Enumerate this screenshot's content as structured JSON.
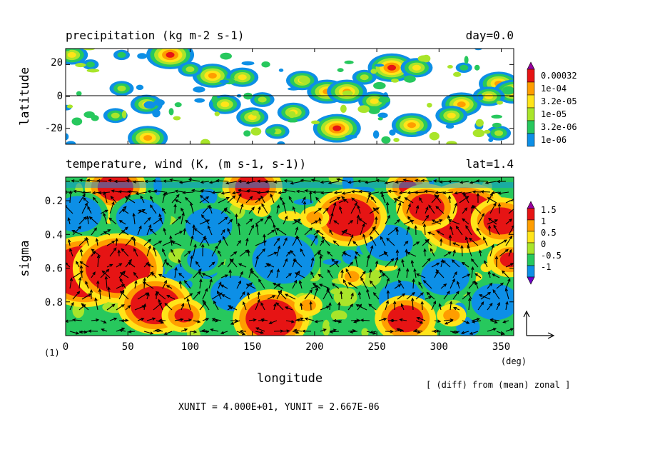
{
  "chart_data": [
    {
      "type": "heatmap",
      "title": "precipitation (kg m-2 s-1)",
      "title_right": "day=0.0",
      "xlim": [
        0,
        360
      ],
      "ylim": [
        -30,
        30
      ],
      "ylabel": "latitude",
      "yticks": [
        -20,
        0,
        20
      ],
      "ytick_labels": [
        "-20",
        "0",
        "20"
      ],
      "zero_line": true,
      "colorbar": {
        "labels": [
          "0.00032",
          "1e-04",
          "3.2e-05",
          "1e-05",
          "3.2e-06",
          "1e-06"
        ],
        "colors": [
          "#ffffff",
          "#0d8fe6",
          "#27c85d",
          "#a9e52a",
          "#ffe419",
          "#ff9d00",
          "#e61414",
          "#9900a0"
        ]
      },
      "blobs": [
        {
          "x": 5,
          "y": 26,
          "level": 4
        },
        {
          "x": 45,
          "y": 26,
          "level": 2
        },
        {
          "x": 84,
          "y": 26,
          "level": 6
        },
        {
          "x": 118,
          "y": 13,
          "level": 5
        },
        {
          "x": 142,
          "y": 12,
          "level": 4
        },
        {
          "x": 190,
          "y": 10,
          "level": 4
        },
        {
          "x": 262,
          "y": 18,
          "level": 6
        },
        {
          "x": 282,
          "y": 18,
          "level": 4
        },
        {
          "x": 348,
          "y": 8,
          "level": 5
        },
        {
          "x": 360,
          "y": 3,
          "level": 5
        },
        {
          "x": 100,
          "y": 17,
          "level": 3
        },
        {
          "x": 45,
          "y": 5,
          "level": 3
        },
        {
          "x": 65,
          "y": -5,
          "level": 4
        },
        {
          "x": 128,
          "y": -5,
          "level": 4
        },
        {
          "x": 158,
          "y": -2,
          "level": 3
        },
        {
          "x": 210,
          "y": 3,
          "level": 5
        },
        {
          "x": 226,
          "y": 3,
          "level": 5
        },
        {
          "x": 248,
          "y": -3,
          "level": 4
        },
        {
          "x": 318,
          "y": -5,
          "level": 5
        },
        {
          "x": 340,
          "y": 0,
          "level": 4
        },
        {
          "x": 40,
          "y": -12,
          "level": 3
        },
        {
          "x": 150,
          "y": -13,
          "level": 4
        },
        {
          "x": 183,
          "y": -10,
          "level": 4
        },
        {
          "x": 218,
          "y": -20,
          "level": 6
        },
        {
          "x": 278,
          "y": -18,
          "level": 5
        },
        {
          "x": 310,
          "y": -12,
          "level": 4
        },
        {
          "x": 66,
          "y": -26,
          "level": 5
        },
        {
          "x": 170,
          "y": -22,
          "level": 3
        },
        {
          "x": 348,
          "y": -23,
          "level": 3
        },
        {
          "x": 20,
          "y": 20,
          "level": 2
        },
        {
          "x": 240,
          "y": 12,
          "level": 3
        },
        {
          "x": 320,
          "y": 18,
          "level": 2
        }
      ]
    },
    {
      "type": "heatmap",
      "title": "temperature, wind (K, (m s-1, s-1))",
      "title_right": "lat=1.4",
      "xlim": [
        0,
        360
      ],
      "ylim": [
        1.0,
        0.06
      ],
      "xlabel": "longitude",
      "x_unit_label": "(deg)",
      "xticks": [
        0,
        50,
        100,
        150,
        200,
        250,
        300,
        350
      ],
      "xtick_labels": [
        "0",
        "50",
        "100",
        "150",
        "200",
        "250",
        "300",
        "350"
      ],
      "ylabel": "sigma",
      "yticks": [
        0.2,
        0.4,
        0.6,
        0.8
      ],
      "ytick_labels": [
        "0.2",
        "0.4",
        "0.6",
        "0.8"
      ],
      "colorbar": {
        "labels": [
          "1.5",
          "1",
          "0.5",
          "0",
          "-0.5",
          "-1"
        ],
        "colors": [
          "#9900a0",
          "#e61414",
          "#ff9d00",
          "#ffe419",
          "#a9e52a",
          "#27c85d",
          "#0d8fe6",
          "#6f00c8"
        ]
      },
      "anomalies": [
        {
          "x": 40,
          "y": 0.12,
          "v": 2.0
        },
        {
          "x": 150,
          "y": 0.12,
          "v": 1.8
        },
        {
          "x": 275,
          "y": 0.12,
          "v": 1.2
        },
        {
          "x": 10,
          "y": 0.28,
          "v": -1.8
        },
        {
          "x": 60,
          "y": 0.3,
          "v": -2.0
        },
        {
          "x": 115,
          "y": 0.35,
          "v": -1.7
        },
        {
          "x": 175,
          "y": 0.55,
          "v": -2.2
        },
        {
          "x": 135,
          "y": 0.75,
          "v": -1.6
        },
        {
          "x": 110,
          "y": 0.55,
          "v": -1.2
        },
        {
          "x": 260,
          "y": 0.45,
          "v": -1.8
        },
        {
          "x": 270,
          "y": 0.78,
          "v": -1.6
        },
        {
          "x": 305,
          "y": 0.65,
          "v": -2.0
        },
        {
          "x": 345,
          "y": 0.8,
          "v": -1.8
        },
        {
          "x": 15,
          "y": 0.62,
          "v": 3.0
        },
        {
          "x": 42,
          "y": 0.6,
          "v": 2.6
        },
        {
          "x": 72,
          "y": 0.82,
          "v": 2.2
        },
        {
          "x": 320,
          "y": 0.3,
          "v": 2.8
        },
        {
          "x": 290,
          "y": 0.24,
          "v": 2.0
        },
        {
          "x": 350,
          "y": 0.32,
          "v": 2.0
        },
        {
          "x": 165,
          "y": 0.9,
          "v": 2.4
        },
        {
          "x": 228,
          "y": 0.3,
          "v": 2.2
        },
        {
          "x": 273,
          "y": 0.9,
          "v": 2.0
        },
        {
          "x": 95,
          "y": 0.88,
          "v": 1.3
        },
        {
          "x": 200,
          "y": 0.3,
          "v": 0.9
        },
        {
          "x": 310,
          "y": 0.88,
          "v": 0.9
        },
        {
          "x": 230,
          "y": 0.65,
          "v": 0.6
        },
        {
          "x": 195,
          "y": 0.82,
          "v": 0.7
        },
        {
          "x": 357,
          "y": 0.55,
          "v": 1.5
        }
      ]
    }
  ],
  "annotations": {
    "panel_index": "(1)",
    "unit_line": "XUNIT = 4.000E+01, YUNIT = 2.667E-06",
    "mean_note": "[ (diff) from (mean) zonal ]"
  }
}
